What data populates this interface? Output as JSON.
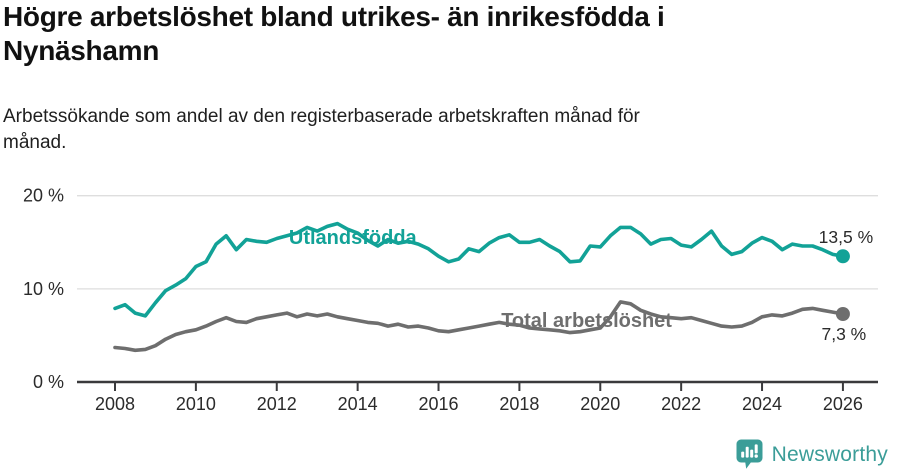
{
  "header": {
    "title": "Högre arbetslöshet bland utrikes- än inrikesfödda i\nNynäshamn",
    "subtitle": "Arbetssökande som andel av den registerbaserade arbetskraften månad för\nmånad."
  },
  "chart_data": {
    "type": "line",
    "title": "Högre arbetslöshet bland utrikes- än inrikesfödda i Nynäshamn",
    "subtitle": "Arbetssökande som andel av den registerbaserade arbetskraften månad för månad.",
    "xlabel": "",
    "ylabel": "",
    "ylim": [
      0,
      20
    ],
    "xlim": [
      2007.1,
      2026.9
    ],
    "grid": "horizontal",
    "legend_position": "inline-labels",
    "y_ticks": [
      {
        "value": 0,
        "label": "0 %"
      },
      {
        "value": 10,
        "label": "10 %"
      },
      {
        "value": 20,
        "label": "20 %"
      }
    ],
    "x_ticks": [
      {
        "value": 2008,
        "label": "2008"
      },
      {
        "value": 2010,
        "label": "2010"
      },
      {
        "value": 2012,
        "label": "2012"
      },
      {
        "value": 2014,
        "label": "2014"
      },
      {
        "value": 2016,
        "label": "2016"
      },
      {
        "value": 2018,
        "label": "2018"
      },
      {
        "value": 2020,
        "label": "2020"
      },
      {
        "value": 2022,
        "label": "2022"
      },
      {
        "value": 2024,
        "label": "2024"
      },
      {
        "value": 2026,
        "label": "2026"
      }
    ],
    "x_start": 2008.0,
    "x_step": 0.25,
    "series": [
      {
        "name": "Utlandsfödda",
        "color": "#12a297",
        "end_value_label": "13,5 %",
        "values": [
          7.9,
          8.3,
          7.4,
          7.1,
          8.5,
          9.8,
          10.4,
          11.1,
          12.4,
          12.9,
          14.8,
          15.7,
          14.2,
          15.3,
          15.1,
          15.0,
          15.4,
          15.7,
          16.0,
          16.6,
          16.2,
          16.7,
          17.0,
          16.4,
          16.0,
          15.2,
          14.6,
          15.3,
          14.9,
          15.1,
          14.8,
          14.3,
          13.5,
          12.9,
          13.2,
          14.3,
          14.0,
          14.9,
          15.5,
          15.8,
          15.0,
          15.0,
          15.3,
          14.6,
          14.0,
          12.9,
          13.0,
          14.6,
          14.5,
          15.7,
          16.6,
          16.6,
          15.9,
          14.8,
          15.3,
          15.4,
          14.7,
          14.5,
          15.3,
          16.2,
          14.6,
          13.7,
          14.0,
          14.9,
          15.5,
          15.1,
          14.2,
          14.8,
          14.6,
          14.6,
          14.2,
          13.7,
          13.5
        ]
      },
      {
        "name": "Total arbetslöshet",
        "color": "#6e6e6e",
        "end_value_label": "7,3 %",
        "values": [
          3.7,
          3.6,
          3.4,
          3.5,
          3.9,
          4.6,
          5.1,
          5.4,
          5.6,
          6.0,
          6.5,
          6.9,
          6.5,
          6.4,
          6.8,
          7.0,
          7.2,
          7.4,
          7.0,
          7.3,
          7.1,
          7.3,
          7.0,
          6.8,
          6.6,
          6.4,
          6.3,
          6.0,
          6.2,
          5.9,
          6.0,
          5.8,
          5.5,
          5.4,
          5.6,
          5.8,
          6.0,
          6.2,
          6.4,
          6.2,
          6.1,
          5.8,
          5.7,
          5.6,
          5.5,
          5.3,
          5.4,
          5.6,
          5.8,
          7.0,
          8.6,
          8.4,
          7.7,
          7.3,
          7.0,
          6.9,
          6.8,
          6.9,
          6.6,
          6.3,
          6.0,
          5.9,
          6.0,
          6.4,
          7.0,
          7.2,
          7.1,
          7.4,
          7.8,
          7.9,
          7.7,
          7.5,
          7.3
        ]
      }
    ],
    "annotations": [
      {
        "text": "Utlandsfödda",
        "x": 2012.3,
        "y": 14.8,
        "type": "series-label",
        "color": "#12a297"
      },
      {
        "text": "Total arbetslöshet",
        "x": 2017.55,
        "y": 5.9,
        "type": "series-label",
        "color": "#6e6e6e"
      },
      {
        "text": "13,5 %",
        "x": 2025.4,
        "y": 14.9,
        "type": "value-label",
        "color": "#2b2b2b"
      },
      {
        "text": "7,3 %",
        "x": 2025.47,
        "y": 4.5,
        "type": "value-label",
        "color": "#2b2b2b"
      }
    ]
  },
  "footer": {
    "brand": "Newsworthy",
    "brand_color": "#3b9d98",
    "brand_icon": "bar-chart-speech-bubble"
  },
  "palette": {
    "foreign_born_line": "#12a297",
    "total_line": "#6e6e6e",
    "gridline": "#dedede",
    "axis": "#3a3a3c",
    "text": "#111111"
  }
}
